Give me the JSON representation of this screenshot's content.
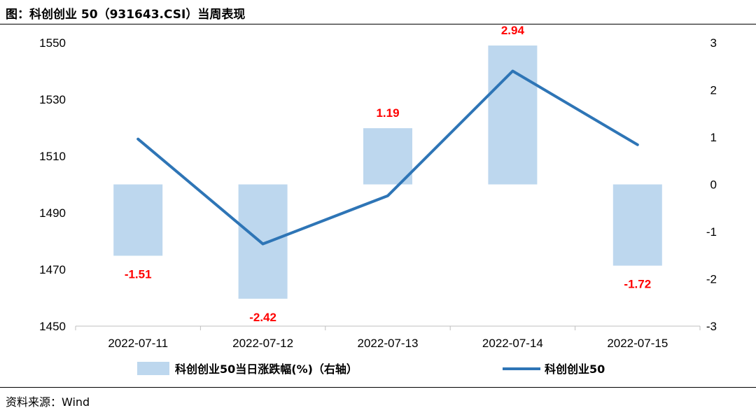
{
  "header": {
    "title": "图：科创创业 50（931643.CSI）当周表现"
  },
  "footer": {
    "source": "资料来源：Wind"
  },
  "colors": {
    "bar": "#bdd7ee",
    "line": "#2e75b6",
    "data_label": "#ff0000"
  },
  "chart_data": {
    "type": "bar+line",
    "categories": [
      "2022-07-11",
      "2022-07-12",
      "2022-07-13",
      "2022-07-14",
      "2022-07-15"
    ],
    "series": [
      {
        "name": "科创创业50当日涨跌幅(%)（右轴）",
        "type": "bar",
        "axis": "right",
        "values": [
          -1.51,
          -2.42,
          1.19,
          2.94,
          -1.72
        ]
      },
      {
        "name": "科创创业50",
        "type": "line",
        "axis": "left",
        "values": [
          1516,
          1479,
          1496,
          1540,
          1514
        ]
      }
    ],
    "left_axis": {
      "ylim": [
        1450,
        1550
      ],
      "ticks": [
        "1550",
        "1530",
        "1510",
        "1490",
        "1470",
        "1450"
      ]
    },
    "right_axis": {
      "ylim": [
        -3,
        3
      ],
      "ticks": [
        "3",
        "2",
        "1",
        "0",
        "-1",
        "-2",
        "-3"
      ]
    },
    "data_labels": [
      "-1.51",
      "-2.42",
      "1.19",
      "2.94",
      "-1.72"
    ],
    "legend_position": "bottom",
    "grid": false
  }
}
